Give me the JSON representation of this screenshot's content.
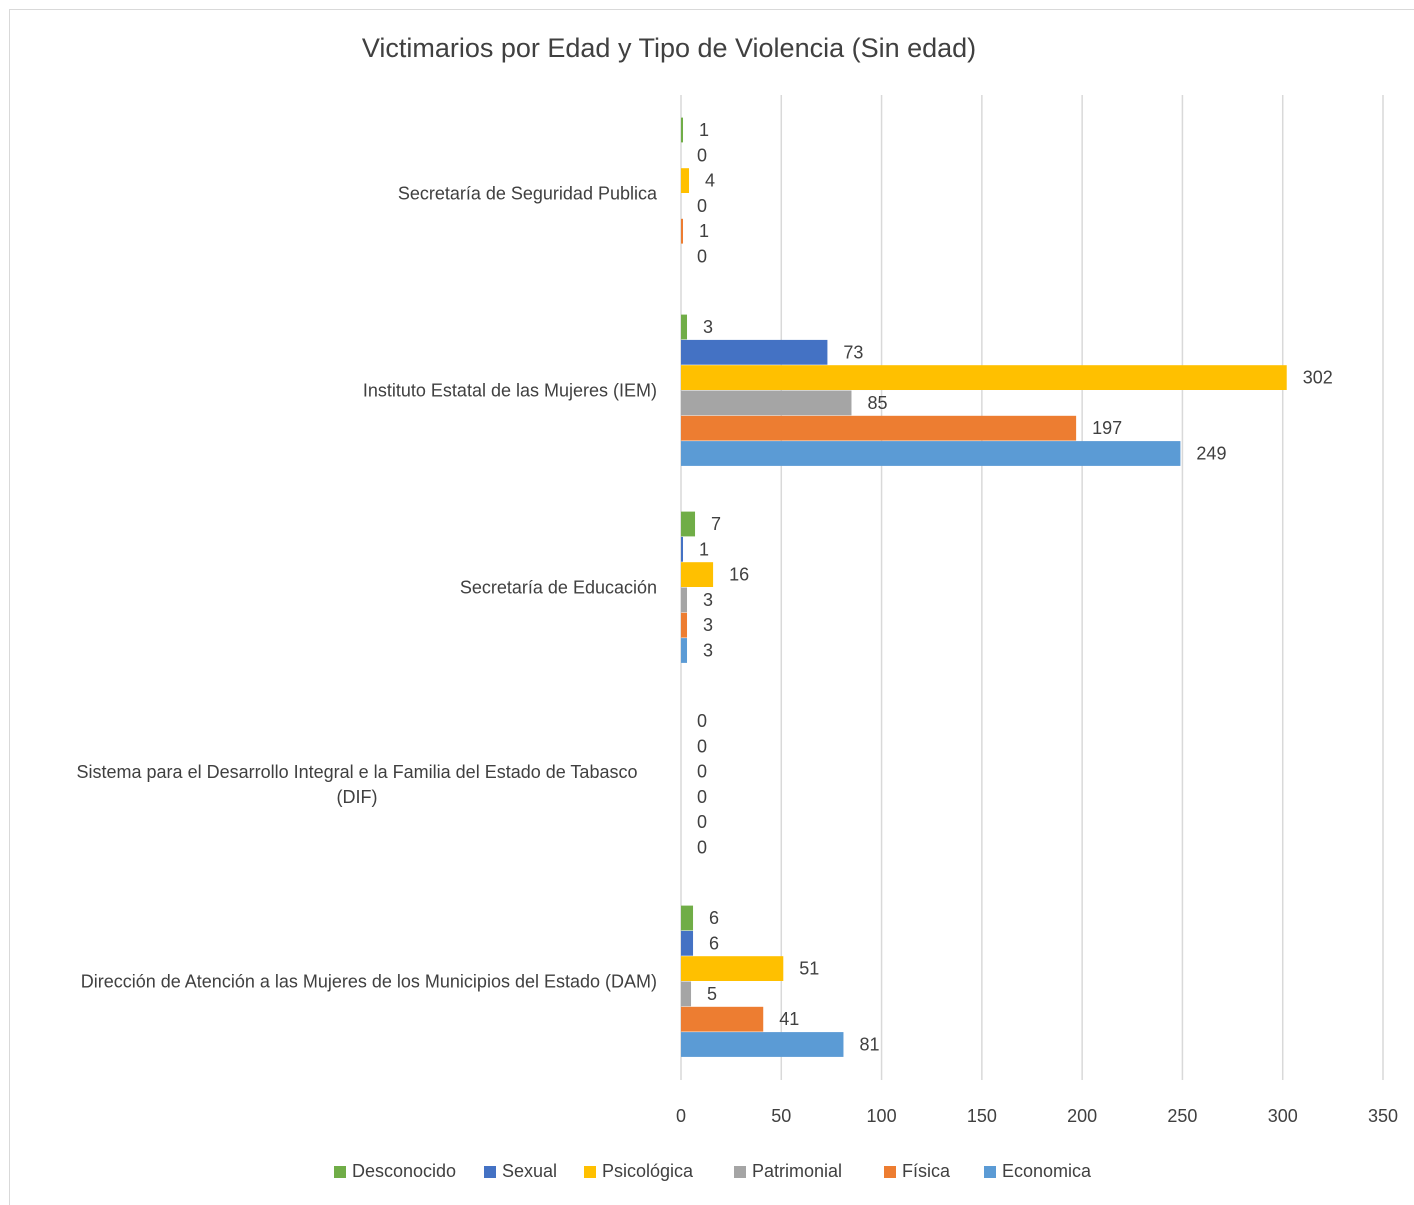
{
  "chart_data": {
    "type": "bar",
    "orientation": "horizontal",
    "title": "Victimarios por Edad y Tipo de Violencia (Sin edad)",
    "categories": [
      "Secretaría de Seguridad Publica",
      "Instituto Estatal de las Mujeres (IEM)",
      "Secretaría de Educación",
      "Sistema para el Desarrollo Integral e la Familia del Estado de Tabasco (DIF)",
      "Dirección de Atención a las Mujeres de los Municipios del Estado (DAM)"
    ],
    "series": [
      {
        "name": "Desconocido",
        "color": "#70ad47",
        "values": [
          1,
          3,
          7,
          0,
          6
        ]
      },
      {
        "name": "Sexual",
        "color": "#4472c4",
        "values": [
          0,
          73,
          1,
          0,
          6
        ]
      },
      {
        "name": "Psicológica",
        "color": "#ffc000",
        "values": [
          4,
          302,
          16,
          0,
          51
        ]
      },
      {
        "name": "Patrimonial",
        "color": "#a5a5a5",
        "values": [
          0,
          85,
          3,
          0,
          5
        ]
      },
      {
        "name": "Física",
        "color": "#ed7d31",
        "values": [
          1,
          197,
          3,
          0,
          41
        ]
      },
      {
        "name": "Economica",
        "color": "#5b9bd5",
        "values": [
          0,
          249,
          3,
          0,
          81
        ]
      }
    ],
    "xlim": [
      0,
      350
    ],
    "xticks": [
      0,
      50,
      100,
      150,
      200,
      250,
      300,
      350
    ],
    "grid": true,
    "legend": "bottom"
  }
}
